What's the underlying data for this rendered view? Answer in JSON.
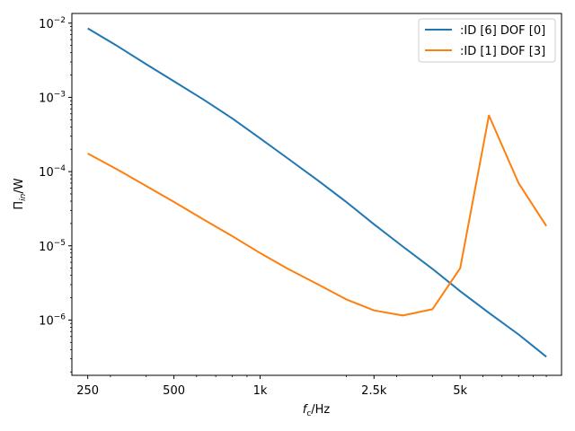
{
  "chart_data": {
    "type": "line",
    "title": "",
    "xlabel_main": "f",
    "xlabel_sub": "c",
    "xlabel_unit": "/Hz",
    "ylabel_main": "Π",
    "ylabel_sub": "in",
    "ylabel_unit": "/W",
    "x_scale": "log",
    "y_scale": "log",
    "xlim": [
      220,
      11300
    ],
    "ylim": [
      1.8e-07,
      0.0135
    ],
    "grid": false,
    "legend_position": "top-right",
    "x_ticks": [
      {
        "value": 250,
        "label": "250"
      },
      {
        "value": 500,
        "label": "500"
      },
      {
        "value": 1000,
        "label": "1k"
      },
      {
        "value": 2500,
        "label": "2.5k"
      },
      {
        "value": 5000,
        "label": "5k"
      }
    ],
    "y_ticks": [
      {
        "value": 1e-06,
        "base": "10",
        "exp": "−6"
      },
      {
        "value": 1e-05,
        "base": "10",
        "exp": "−5"
      },
      {
        "value": 0.0001,
        "base": "10",
        "exp": "−4"
      },
      {
        "value": 0.001,
        "base": "10",
        "exp": "−3"
      },
      {
        "value": 0.01,
        "base": "10",
        "exp": "−2"
      }
    ],
    "series": [
      {
        "name": ":ID [6] DOF [0]",
        "color": "#1f77b4",
        "x": [
          250,
          315,
          400,
          500,
          630,
          800,
          1000,
          1250,
          1600,
          2000,
          2500,
          3150,
          4000,
          5000,
          6300,
          8000,
          10000
        ],
        "y": [
          0.0085,
          0.005,
          0.0028,
          0.00165,
          0.00095,
          0.00052,
          0.00028,
          0.00015,
          7.5e-05,
          3.9e-05,
          1.95e-05,
          9.8e-06,
          4.9e-06,
          2.45e-06,
          1.25e-06,
          6.4e-07,
          3.2e-07
        ]
      },
      {
        "name": ":ID [1] DOF [3]",
        "color": "#ff7f0e",
        "x": [
          250,
          315,
          400,
          500,
          630,
          800,
          1000,
          1250,
          1600,
          2000,
          2500,
          3150,
          4000,
          5000,
          6300,
          8000,
          10000
        ],
        "y": [
          0.000175,
          0.000108,
          6.4e-05,
          3.9e-05,
          2.3e-05,
          1.35e-05,
          8e-06,
          4.9e-06,
          3e-06,
          1.9e-06,
          1.35e-06,
          1.15e-06,
          1.4e-06,
          5e-06,
          0.00057,
          7e-05,
          1.85e-05
        ]
      }
    ]
  }
}
